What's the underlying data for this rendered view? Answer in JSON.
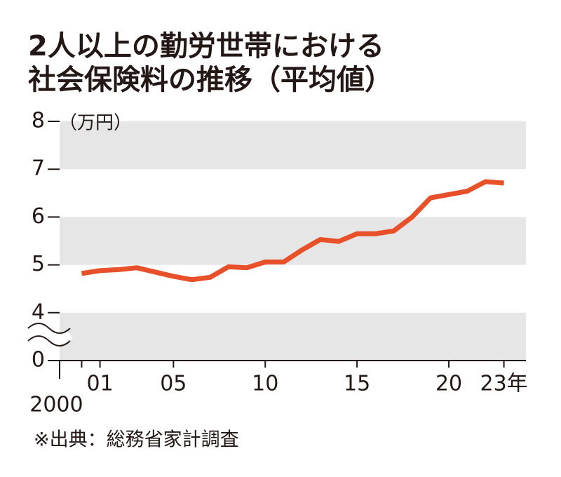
{
  "chart_data": {
    "type": "line",
    "title": [
      "2人以上の勤労世帯における",
      "社会保険料の推移（平均値）"
    ],
    "y_unit": "（万円）",
    "source": "※出典：総務省家計調査",
    "x": [
      2000,
      2001,
      2002,
      2003,
      2004,
      2005,
      2006,
      2007,
      2008,
      2009,
      2010,
      2011,
      2012,
      2013,
      2014,
      2015,
      2016,
      2017,
      2018,
      2019,
      2020,
      2021,
      2022,
      2023
    ],
    "series": [
      {
        "color": "#e8502a",
        "values": [
          4.82,
          4.88,
          4.9,
          4.94,
          4.85,
          4.76,
          4.69,
          4.74,
          4.96,
          4.94,
          5.06,
          5.06,
          5.31,
          5.53,
          5.49,
          5.65,
          5.65,
          5.71,
          6.0,
          6.4,
          6.47,
          6.54,
          6.74,
          6.71
        ]
      }
    ],
    "xlim": [
      1998.8,
      2024.2
    ],
    "xticks": [
      2000,
      {
        "value": 2001,
        "label": "01"
      },
      {
        "value": 2005,
        "label": "05"
      },
      {
        "value": 2010,
        "label": "10"
      },
      {
        "value": 2015,
        "label": "15"
      },
      {
        "value": 2020,
        "label": "20"
      },
      {
        "value": 2023,
        "label": "23年"
      }
    ],
    "ylim": [
      0,
      8
    ],
    "yticks": [
      0,
      4,
      5,
      6,
      7,
      8
    ],
    "axis_break": [
      0,
      4
    ],
    "band_color": "#e6e6e6"
  }
}
